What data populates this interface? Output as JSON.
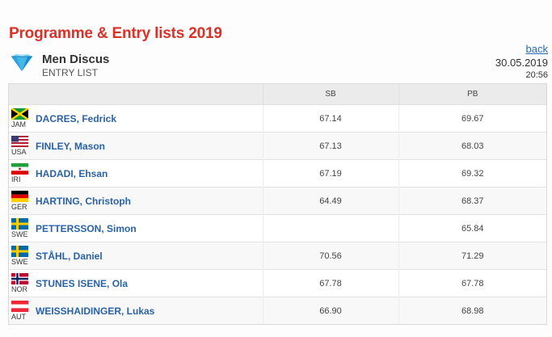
{
  "page": {
    "title": "Programme & Entry lists 2019"
  },
  "event": {
    "name": "Men Discus",
    "subtitle": "ENTRY LIST",
    "icon": "diamond-icon",
    "back_label": "back",
    "date": "30.05.2019",
    "time": "20:56"
  },
  "table": {
    "headers": {
      "athlete": "",
      "sb": "SB",
      "pb": "PB"
    },
    "rows": [
      {
        "country": "JAM",
        "flag": "jamaica-flag-icon",
        "name": "DACRES, Fedrick",
        "sb": "67.14",
        "pb": "69.67"
      },
      {
        "country": "USA",
        "flag": "usa-flag-icon",
        "name": "FINLEY, Mason",
        "sb": "67.13",
        "pb": "68.03"
      },
      {
        "country": "IRI",
        "flag": "iran-flag-icon",
        "name": "HADADI, Ehsan",
        "sb": "67.19",
        "pb": "69.32"
      },
      {
        "country": "GER",
        "flag": "germany-flag-icon",
        "name": "HARTING, Christoph",
        "sb": "64.49",
        "pb": "68.37"
      },
      {
        "country": "SWE",
        "flag": "sweden-flag-icon",
        "name": "PETTERSSON, Simon",
        "sb": "",
        "pb": "65.84"
      },
      {
        "country": "SWE",
        "flag": "sweden-flag-icon",
        "name": "STÅHL, Daniel",
        "sb": "70.56",
        "pb": "71.29"
      },
      {
        "country": "NOR",
        "flag": "norway-flag-icon",
        "name": "STUNES ISENE, Ola",
        "sb": "67.78",
        "pb": "67.78"
      },
      {
        "country": "AUT",
        "flag": "austria-flag-icon",
        "name": "WEISSHAIDINGER, Lukas",
        "sb": "66.90",
        "pb": "68.98"
      }
    ]
  },
  "colors": {
    "title": "#d9322b",
    "link": "#2a62a6",
    "header_bg": "#ebebeb",
    "diamond": "#2ba3e0"
  }
}
